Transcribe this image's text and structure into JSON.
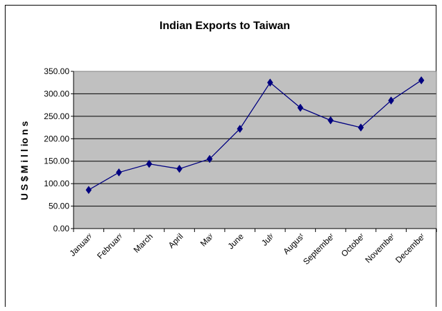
{
  "chart_data": {
    "type": "line",
    "title": "Indian Exports to Taiwan",
    "xlabel": "",
    "ylabel": "U S $ M i l l io n s",
    "categories": [
      "January",
      "February",
      "March",
      "April",
      "May",
      "June",
      "July",
      "August",
      "September",
      "October",
      "November",
      "December"
    ],
    "category_labels": [
      "Januarʸ",
      "Februarʸ",
      "March",
      "April",
      "Maʸ",
      "June",
      "Julʸ",
      "Augusᵗ",
      "Septembeʳ",
      "Octobeʳ",
      "Novembeʳ",
      "Decembeʳ"
    ],
    "series": [
      {
        "values": [
          86,
          125,
          144,
          133,
          155,
          222,
          325,
          269,
          241,
          225,
          285,
          330
        ]
      }
    ],
    "ylim": [
      0,
      350
    ],
    "yticks": [
      0,
      50,
      100,
      150,
      200,
      250,
      300,
      350
    ],
    "ytick_labels": [
      "0.00",
      "50.00",
      "100.00",
      "150.00",
      "200.00",
      "250.00",
      "300.00",
      "350.00"
    ],
    "grid": true,
    "legend": "none",
    "colors": {
      "plot_background": "#c0c0c0",
      "gridline": "#000000",
      "line": "#000080",
      "marker": "#000080"
    }
  }
}
